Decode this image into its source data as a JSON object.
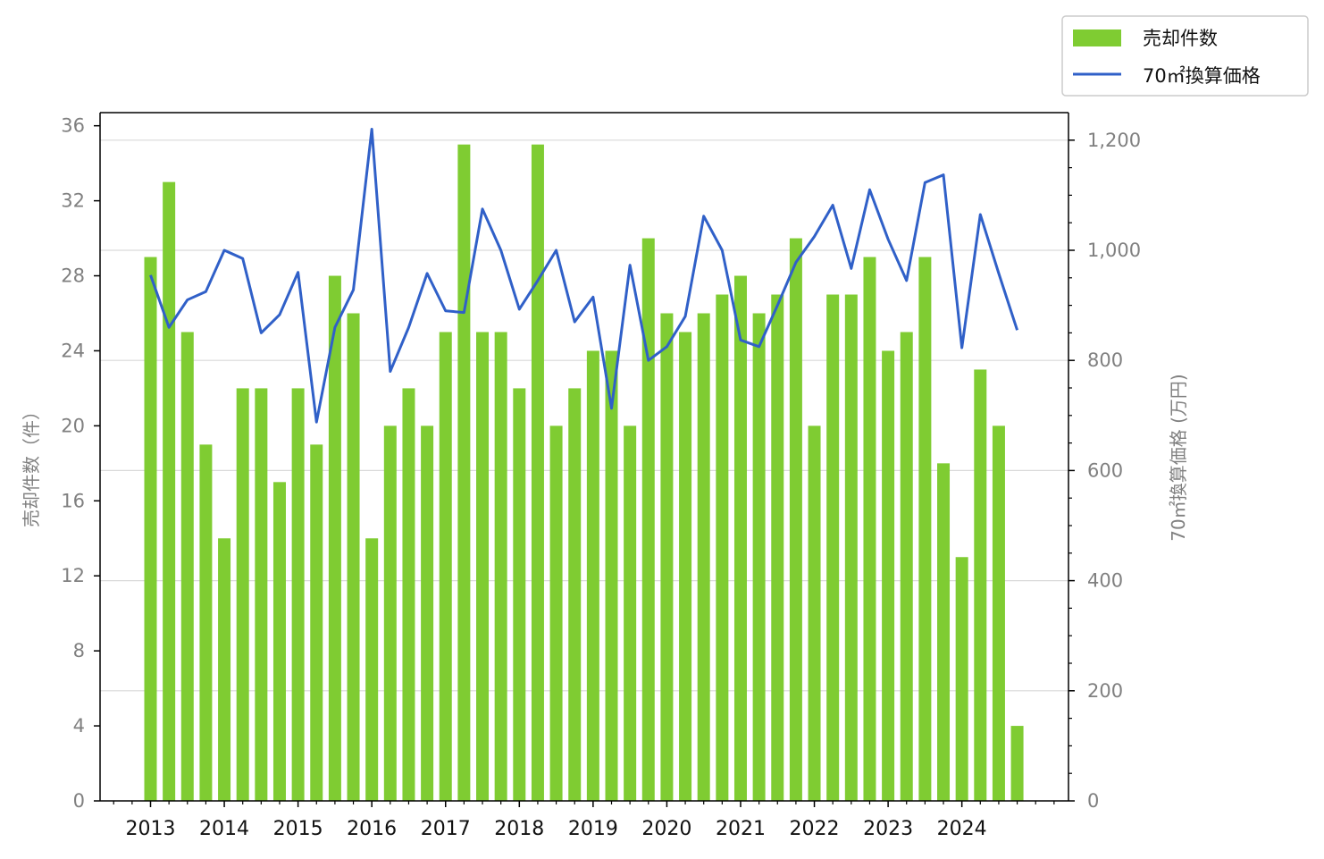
{
  "chart_data": {
    "type": "bar",
    "title": "",
    "ylabel_left": "売却件数（件）",
    "ylabel_right": "70㎡換算価格 (万円)",
    "ylim_left": [
      0,
      36.7
    ],
    "ylim_right": [
      0,
      1250
    ],
    "yticks_left": [
      0,
      4,
      8,
      12,
      16,
      20,
      24,
      28,
      32,
      36
    ],
    "yticks_right": [
      0,
      200,
      400,
      600,
      800,
      1000,
      1200
    ],
    "ytick_labels_right": [
      "0",
      "200",
      "400",
      "600",
      "800",
      "1,000",
      "1,200"
    ],
    "xtick_labels": [
      "2013",
      "2014",
      "2015",
      "2016",
      "2017",
      "2018",
      "2019",
      "2020",
      "2021",
      "2022",
      "2023",
      "2024"
    ],
    "grid": true,
    "legend_position": "top-right",
    "legend": [
      "売却件数",
      "70㎡換算価格"
    ],
    "colors": {
      "bars": "#7fcc32",
      "line": "#3060c8"
    },
    "series": [
      {
        "name": "売却件数",
        "type": "bar",
        "axis": "left",
        "values": [
          29,
          33,
          25,
          19,
          14,
          22,
          22,
          17,
          22,
          19,
          28,
          26,
          14,
          20,
          22,
          20,
          25,
          35,
          25,
          25,
          22,
          35,
          20,
          22,
          24,
          24,
          20,
          30,
          26,
          25,
          26,
          27,
          28,
          26,
          27,
          30,
          20,
          27,
          27,
          29,
          24,
          25,
          29,
          18,
          13,
          23,
          20,
          4
        ]
      },
      {
        "name": "70㎡換算価格",
        "type": "line",
        "axis": "right",
        "values": [
          955,
          860,
          910,
          925,
          1000,
          985,
          850,
          883,
          960,
          688,
          860,
          928,
          1220,
          780,
          860,
          958,
          890,
          887,
          1075,
          1000,
          893,
          945,
          1000,
          870,
          915,
          713,
          973,
          800,
          825,
          880,
          1062,
          1000,
          837,
          825,
          900,
          978,
          1025,
          1082,
          967,
          1110,
          1020,
          945,
          1123,
          1137,
          823,
          1065,
          958,
          855
        ]
      }
    ]
  }
}
